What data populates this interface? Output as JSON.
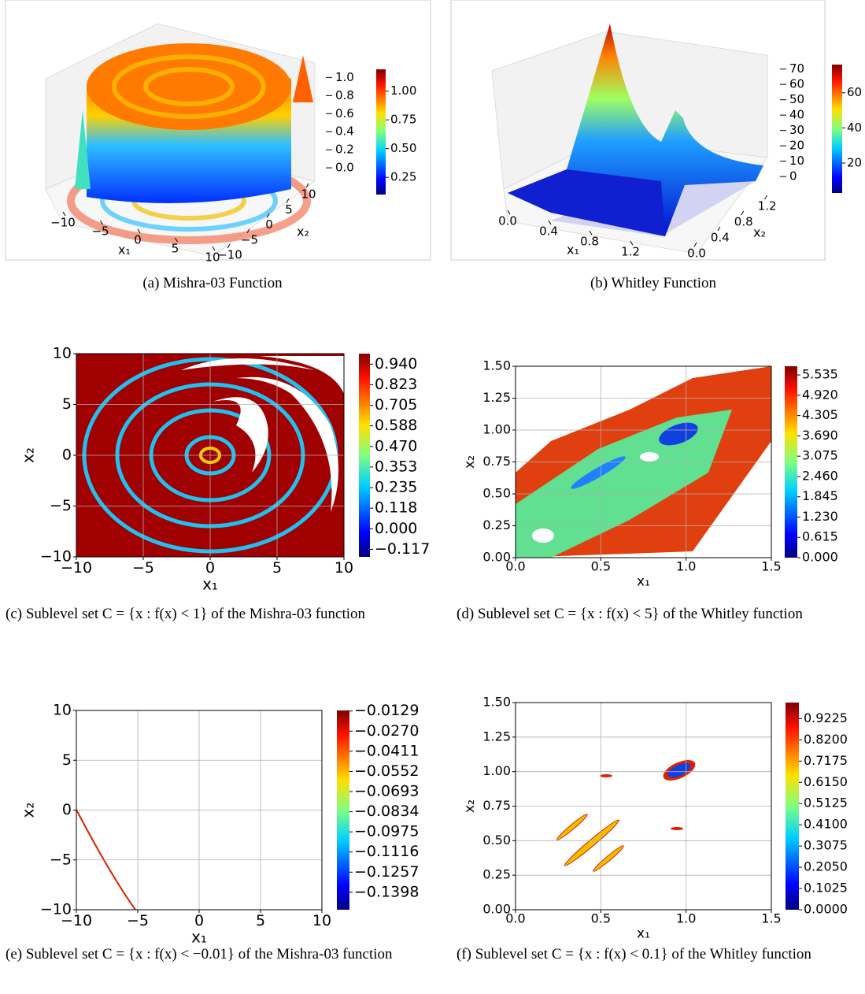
{
  "panels": [
    {
      "type": "surface3d",
      "caption": "(a) Mishra-03 Function",
      "xlabel": "x₁",
      "ylabel": "x₂",
      "colormap": "jet",
      "xlim": [
        -10,
        10
      ],
      "xticks": [
        {
          "value": -10,
          "label": "−10"
        },
        {
          "value": -5,
          "label": "−5"
        },
        0,
        5,
        10
      ],
      "ylim": [
        -10,
        10
      ],
      "yticks": [
        {
          "value": -10,
          "label": "−10"
        },
        {
          "value": -5,
          "label": "−5"
        },
        0,
        5,
        10
      ],
      "zlim": [
        -0.13,
        1.23
      ],
      "zticks": [
        {
          "value": 0,
          "label": "0.0"
        },
        0.2,
        0.4,
        0.6,
        0.8,
        {
          "value": 1,
          "label": "1.0"
        }
      ],
      "clim": [
        0.1,
        1.19
      ],
      "cticks": [
        {
          "value": 1,
          "label": "1.00"
        },
        0.75,
        {
          "value": 0.5,
          "label": "0.50"
        },
        0.25
      ]
    },
    {
      "type": "surface3d",
      "caption": "(b) Whitley Function",
      "xlabel": "x₁",
      "ylabel": "x₂",
      "colormap": "jet",
      "xlim": [
        0,
        1.5
      ],
      "xticks": [
        {
          "value": 0,
          "label": "0.0"
        },
        0.4,
        0.8,
        1.2
      ],
      "ylim": [
        0,
        1.5
      ],
      "yticks": [
        {
          "value": 0,
          "label": "0.0"
        },
        0.4,
        0.8,
        1.2
      ],
      "zlim": [
        -3,
        77
      ],
      "zticks": [
        0,
        10,
        20,
        30,
        40,
        50,
        60,
        70
      ],
      "clim": [
        3,
        76
      ],
      "cticks": [
        60,
        40,
        20
      ]
    },
    {
      "type": "contour",
      "caption": "(c) Sublevel set C = {x : f(x) < 1} of the Mishra-03 function",
      "xlabel": "x₁",
      "ylabel": "x₂",
      "colormap": "jet",
      "grid": true,
      "xlim": [
        -10,
        10
      ],
      "xticks": [
        {
          "value": -10,
          "label": "−10"
        },
        {
          "value": -5,
          "label": "−5"
        },
        0,
        5,
        10
      ],
      "ylim": [
        -10,
        10
      ],
      "yticks": [
        {
          "value": -10,
          "label": "−10"
        },
        {
          "value": -5,
          "label": "−5"
        },
        0,
        5,
        10
      ],
      "clim": [
        -0.16,
        1.0
      ],
      "cticks": [
        {
          "value": 0.94,
          "label": "0.940"
        },
        0.823,
        0.705,
        0.588,
        {
          "value": 0.47,
          "label": "0.470"
        },
        0.353,
        0.235,
        0.118,
        {
          "value": 0,
          "label": "0.000"
        },
        {
          "value": -0.117,
          "label": "−0.117"
        }
      ]
    },
    {
      "type": "contour",
      "caption": "(d) Sublevel set C = {x : f(x) < 5} of the Whitley function",
      "xlabel": "x₁",
      "ylabel": "x₂",
      "colormap": "jet",
      "grid": true,
      "xlim": [
        0,
        1.5
      ],
      "xticks": [
        {
          "value": 0,
          "label": "0.0"
        },
        0.5,
        {
          "value": 1,
          "label": "1.0"
        },
        1.5
      ],
      "ylim": [
        0,
        1.5
      ],
      "yticks": [
        {
          "value": 0,
          "label": "0.00"
        },
        0.25,
        {
          "value": 0.5,
          "label": "0.50"
        },
        0.75,
        {
          "value": 1,
          "label": "1.00"
        },
        1.25,
        {
          "value": 1.5,
          "label": "1.50"
        }
      ],
      "clim": [
        0,
        5.8
      ],
      "cticks": [
        5.535,
        {
          "value": 4.92,
          "label": "4.920"
        },
        4.305,
        {
          "value": 3.69,
          "label": "3.690"
        },
        3.075,
        {
          "value": 2.46,
          "label": "2.460"
        },
        1.845,
        {
          "value": 1.23,
          "label": "1.230"
        },
        0.615,
        {
          "value": 0,
          "label": "0.000"
        }
      ]
    },
    {
      "type": "contour",
      "caption": "(e) Sublevel set C = {x : f(x) < −0.01} of the Mishra-03 function",
      "xlabel": "x₁",
      "ylabel": "x₂",
      "colormap": "jet",
      "grid": true,
      "xlim": [
        -10,
        10
      ],
      "xticks": [
        {
          "value": -10,
          "label": "−10"
        },
        {
          "value": -5,
          "label": "−5"
        },
        0,
        5,
        10
      ],
      "ylim": [
        -10,
        10
      ],
      "yticks": [
        {
          "value": -10,
          "label": "−10"
        },
        {
          "value": -5,
          "label": "−5"
        },
        0,
        5,
        10
      ],
      "clim": [
        -0.152,
        -0.0125
      ],
      "cticks": [
        {
          "value": -0.0129,
          "label": "−0.0129"
        },
        {
          "value": -0.027,
          "label": "−0.0270"
        },
        {
          "value": -0.0411,
          "label": "−0.0411"
        },
        {
          "value": -0.0552,
          "label": "−0.0552"
        },
        {
          "value": -0.0693,
          "label": "−0.0693"
        },
        {
          "value": -0.0834,
          "label": "−0.0834"
        },
        {
          "value": -0.0975,
          "label": "−0.0975"
        },
        {
          "value": -0.1116,
          "label": "−0.1116"
        },
        {
          "value": -0.1257,
          "label": "−0.1257"
        },
        {
          "value": -0.1398,
          "label": "−0.1398"
        }
      ]
    },
    {
      "type": "contour",
      "caption": "(f) Sublevel set C = {x : f(x) < 0.1} of the Whitley function",
      "xlabel": "x₁",
      "ylabel": "x₂",
      "colormap": "jet",
      "grid": true,
      "xlim": [
        0,
        1.5
      ],
      "xticks": [
        {
          "value": 0,
          "label": "0.0"
        },
        0.5,
        {
          "value": 1,
          "label": "1.0"
        },
        1.5
      ],
      "ylim": [
        0,
        1.5
      ],
      "yticks": [
        {
          "value": 0,
          "label": "0.00"
        },
        0.25,
        {
          "value": 0.5,
          "label": "0.50"
        },
        0.75,
        {
          "value": 1,
          "label": "1.00"
        },
        1.25,
        {
          "value": 1.5,
          "label": "1.50"
        }
      ],
      "clim": [
        0,
        1.0
      ],
      "cticks": [
        0.9225,
        {
          "value": 0.82,
          "label": "0.8200"
        },
        0.7175,
        {
          "value": 0.615,
          "label": "0.6150"
        },
        0.5125,
        {
          "value": 0.41,
          "label": "0.4100"
        },
        0.3075,
        {
          "value": 0.205,
          "label": "0.2050"
        },
        0.1025,
        {
          "value": 0,
          "label": "0.0000"
        }
      ]
    }
  ]
}
